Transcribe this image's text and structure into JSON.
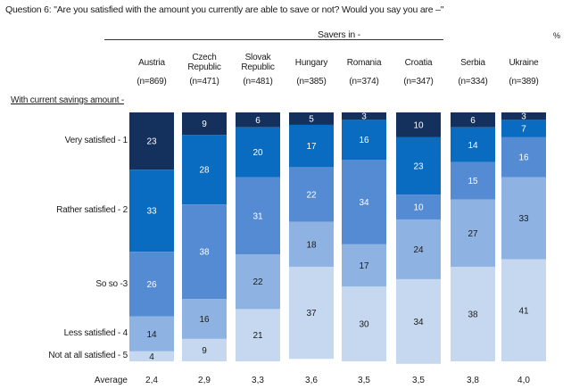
{
  "header": {
    "question": "Question 6:  \"Are you satisfied with the amount you currently are able to save or not? Would you say you are –\"",
    "group_title": "Savers in -",
    "unit": "%"
  },
  "chart_data": {
    "type": "bar",
    "orientation": "vertical",
    "stacked": true,
    "title": "Question 6:  \"Are you satisfied with the amount you currently are able to save or not? Would you say you are –\"",
    "group_title": "Savers in -",
    "unit": "%",
    "row_header": "With current savings amount -",
    "categories": [
      "Austria",
      "Czech Republic",
      "Slovak Republic",
      "Hungary",
      "Romania",
      "Croatia",
      "Serbia",
      "Ukraine"
    ],
    "category_display": [
      [
        "Austria"
      ],
      [
        "Czech",
        "Republic"
      ],
      [
        "Slovak",
        "Republic"
      ],
      [
        "Hungary"
      ],
      [
        "Romania"
      ],
      [
        "Croatia"
      ],
      [
        "Serbia"
      ],
      [
        "Ukraine"
      ]
    ],
    "sample_sizes": [
      "(n=869)",
      "(n=471)",
      "(n=481)",
      "(n=385)",
      "(n=374)",
      "(n=347)",
      "(n=334)",
      "(n=389)"
    ],
    "series": [
      {
        "name": "Very satisfied - 1",
        "color": "#14305c",
        "label_color": "#ffffff",
        "values": [
          23,
          9,
          6,
          5,
          3,
          10,
          6,
          3
        ]
      },
      {
        "name": "Rather satisfied - 2",
        "color": "#0a6cc0",
        "label_color": "#ffffff",
        "values": [
          33,
          28,
          20,
          17,
          16,
          23,
          14,
          7
        ]
      },
      {
        "name": "So so -3",
        "color": "#558bd3",
        "label_color": "#ffffff",
        "values": [
          26,
          38,
          31,
          22,
          34,
          10,
          15,
          16
        ]
      },
      {
        "name": "Less satisfied - 4",
        "color": "#8eb2e2",
        "label_color": "#1a1a1a",
        "values": [
          14,
          16,
          22,
          18,
          17,
          24,
          27,
          33
        ]
      },
      {
        "name": "Not at all satisfied - 5",
        "color": "#c6d8ef",
        "label_color": "#1a1a1a",
        "values": [
          4,
          9,
          21,
          37,
          30,
          34,
          38,
          41
        ]
      }
    ],
    "average_label": "Average",
    "averages": [
      "2,4",
      "2,9",
      "3,3",
      "3,6",
      "3,5",
      "3,5",
      "3,8",
      "4,0"
    ],
    "ylim": [
      0,
      100
    ],
    "legend": "left",
    "grid": false
  }
}
